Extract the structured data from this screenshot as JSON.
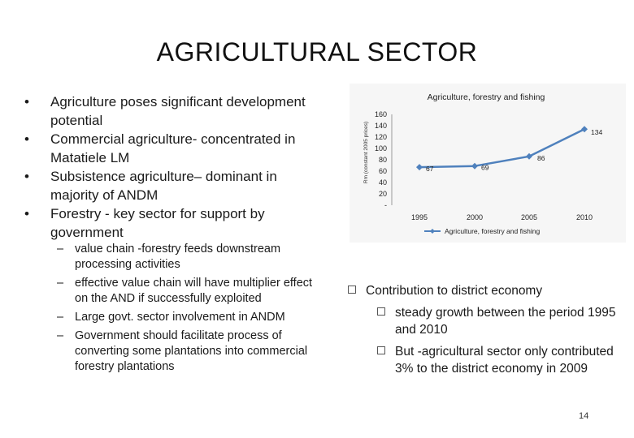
{
  "slide": {
    "title": "AGRICULTURAL SECTOR",
    "page_number": "14"
  },
  "left": {
    "bullets": [
      "Agriculture poses significant development potential",
      "Commercial agriculture- concentrated in Matatiele LM",
      "Subsistence agriculture– dominant in majority of ANDM",
      "Forestry - key sector for support by government"
    ],
    "sub_bullets": [
      "value chain -forestry feeds downstream processing activities",
      "effective value chain will have multiplier effect on the AND if successfully exploited",
      "Large govt. sector involvement in ANDM",
      "Government should facilitate process of converting some plantations into commercial forestry plantations"
    ]
  },
  "right": {
    "point": "Contribution to district economy",
    "sub_points": [
      "steady growth between the period 1995 and 2010",
      "But -agricultural sector only contributed 3% to the district economy in 2009"
    ]
  },
  "chart_data": {
    "type": "line",
    "title": "Agriculture, forestry and fishing",
    "ylabel": "Rm (constant 2005 prices)",
    "xlabel": "",
    "x": [
      "1995",
      "2000",
      "2005",
      "2010"
    ],
    "series": [
      {
        "name": "Agriculture, forestry and fishing",
        "values": [
          67,
          69,
          86,
          134
        ]
      }
    ],
    "ylim": [
      0,
      160
    ],
    "yticks": [
      "160",
      "140",
      "120",
      "100",
      "80",
      "60",
      "40",
      "20",
      "-"
    ],
    "legend": "bottom",
    "grid": false,
    "line_color": "#4f81bd"
  }
}
